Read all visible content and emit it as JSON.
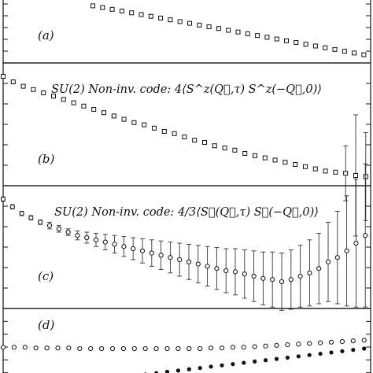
{
  "chart_data": [
    {
      "type": "scatter",
      "panel_label": "(a)",
      "title": "",
      "marker": "open-square",
      "series": [
        {
          "values": [
            0.9,
            0.87,
            0.84,
            0.81,
            0.78,
            0.75,
            0.72,
            0.69,
            0.66,
            0.63,
            0.6,
            0.57,
            0.54,
            0.51,
            0.48,
            0.45,
            0.42,
            0.39,
            0.36,
            0.33,
            0.3,
            0.27,
            0.24,
            0.21,
            0.18,
            0.15,
            0.12,
            0.09,
            0.06,
            0.03
          ]
        }
      ]
    },
    {
      "type": "scatter",
      "panel_label": "(b)",
      "title_prefix": "SU(2) Non-inv. code: ",
      "title_formula": "4⟨S^z(Q⃗,τ) S^z(−Q⃗,0)⟩",
      "marker": "open-square",
      "series": [
        {
          "values": [
            0.95,
            0.9,
            0.86,
            0.83,
            0.8,
            0.77,
            0.74,
            0.71,
            0.68,
            0.65,
            0.62,
            0.59,
            0.56,
            0.53,
            0.51,
            0.48,
            0.45,
            0.43,
            0.4,
            0.37,
            0.35,
            0.32,
            0.3,
            0.28,
            0.25,
            0.23,
            0.21,
            0.19,
            0.17,
            0.15,
            0.13,
            0.11,
            0.09,
            0.08,
            0.07,
            0.05,
            0.04
          ],
          "errors": [
            0,
            0,
            0,
            0,
            0,
            0,
            0,
            0,
            0,
            0,
            0,
            0,
            0,
            0,
            0,
            0,
            0,
            0,
            0,
            0,
            0,
            0,
            0,
            0,
            0,
            0,
            0,
            0,
            0,
            0,
            0,
            0,
            0,
            0,
            0.25,
            0.55,
            0.4
          ]
        }
      ]
    },
    {
      "type": "scatter",
      "panel_label": "(c)",
      "title_prefix": "SU(2) Non-inv. code: ",
      "title_formula": "4/3⟨S⃗(Q⃗,τ) S⃗(−Q⃗,0)⟩",
      "marker": "open-circle",
      "series": [
        {
          "values": [
            0.95,
            0.88,
            0.82,
            0.78,
            0.74,
            0.71,
            0.68,
            0.65,
            0.62,
            0.6,
            0.58,
            0.56,
            0.54,
            0.52,
            0.5,
            0.48,
            0.46,
            0.44,
            0.42,
            0.4,
            0.38,
            0.36,
            0.34,
            0.32,
            0.3,
            0.29,
            0.27,
            0.25,
            0.23,
            0.22,
            0.2,
            0.22,
            0.25,
            0.28,
            0.32,
            0.38,
            0.42,
            0.48,
            0.55,
            0.62
          ],
          "errors": [
            0.02,
            0.02,
            0.02,
            0.02,
            0.02,
            0.03,
            0.03,
            0.03,
            0.04,
            0.05,
            0.06,
            0.07,
            0.08,
            0.09,
            0.1,
            0.11,
            0.12,
            0.13,
            0.14,
            0.15,
            0.16,
            0.17,
            0.18,
            0.19,
            0.2,
            0.21,
            0.22,
            0.23,
            0.24,
            0.25,
            0.26,
            0.27,
            0.28,
            0.3,
            0.32,
            0.36,
            0.42,
            0.5,
            0.58,
            0.65
          ]
        }
      ]
    },
    {
      "type": "scatter",
      "panel_label": "(d)",
      "title": "",
      "series": [
        {
          "marker": "open-circle",
          "values": [
            0.52,
            0.52,
            0.52,
            0.51,
            0.51,
            0.51,
            0.51,
            0.5,
            0.5,
            0.5,
            0.5,
            0.5,
            0.5,
            0.5,
            0.5,
            0.5,
            0.5,
            0.5,
            0.5,
            0.51,
            0.51,
            0.52,
            0.52,
            0.53,
            0.54,
            0.55,
            0.56,
            0.57,
            0.58,
            0.59,
            0.6,
            0.61,
            0.62,
            0.63
          ]
        },
        {
          "marker": "filled-circle",
          "values": [
            0.02,
            0.02,
            0.02,
            0.02,
            0.02,
            0.02,
            0.02,
            0.02,
            0.02,
            0.02,
            0.04,
            0.06,
            0.08,
            0.1,
            0.12,
            0.14,
            0.16,
            0.18,
            0.2,
            0.22,
            0.24,
            0.26,
            0.28,
            0.3,
            0.32,
            0.34,
            0.36,
            0.38,
            0.4,
            0.42,
            0.44,
            0.46,
            0.48,
            0.5,
            0.52,
            0.54,
            0.56,
            0.58,
            0.6
          ]
        }
      ]
    }
  ]
}
